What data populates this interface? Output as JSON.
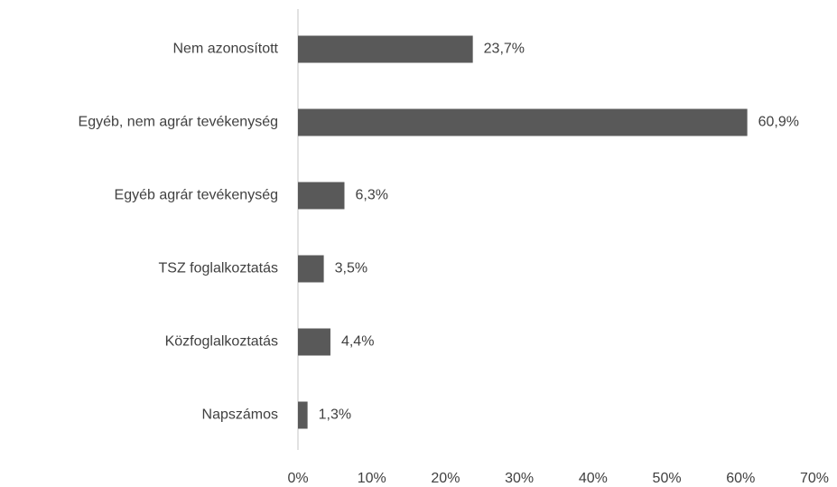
{
  "chart_data": {
    "type": "bar",
    "orientation": "horizontal",
    "categories": [
      "Nem azonosított",
      "Egyéb, nem agrár tevékenység",
      "Egyéb agrár tevékenység",
      "TSZ foglalkoztatás",
      "Közfoglalkoztatás",
      "Napszámos"
    ],
    "values": [
      23.7,
      60.9,
      6.3,
      3.5,
      4.4,
      1.3
    ],
    "value_labels": [
      "23,7%",
      "60,9%",
      "6,3%",
      "3,5%",
      "4,4%",
      "1,3%"
    ],
    "color": "#595959",
    "xlim": [
      0,
      70
    ],
    "xticks": [
      {
        "value": 0,
        "label": "0%"
      },
      {
        "value": 10,
        "label": "10%"
      },
      {
        "value": 20,
        "label": "20%"
      },
      {
        "value": 30,
        "label": "30%"
      },
      {
        "value": 40,
        "label": "40%"
      },
      {
        "value": 50,
        "label": "50%"
      },
      {
        "value": 60,
        "label": "60%"
      },
      {
        "value": 70,
        "label": "70%"
      }
    ],
    "grid": false
  }
}
